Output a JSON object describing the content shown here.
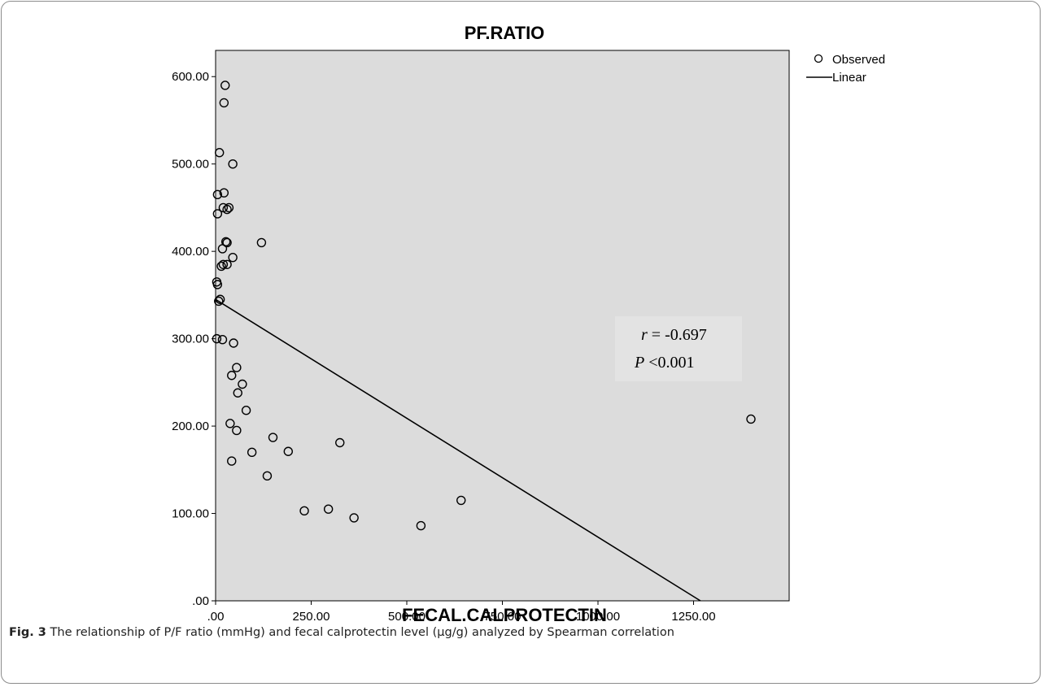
{
  "chart_data": {
    "type": "scatter",
    "title": "PF.RATIO",
    "xlabel": "FECAL.CALPROTECTIN",
    "ylabel": "",
    "xlim": [
      0,
      1500
    ],
    "ylim": [
      0,
      630
    ],
    "x_ticks": [
      ".00",
      "250.00",
      "500.00",
      "750.00",
      "1000.00",
      "1250.00"
    ],
    "y_ticks": [
      ".00",
      "100.00",
      "200.00",
      "300.00",
      "400.00",
      "500.00",
      "600.00"
    ],
    "grid": false,
    "legend": {
      "position": "top-right outside plot",
      "entries": [
        {
          "label": "Observed",
          "marker": "open-circle"
        },
        {
          "label": "Linear",
          "marker": "line"
        }
      ]
    },
    "series": [
      {
        "name": "Observed",
        "points": [
          [
            25,
            590
          ],
          [
            22,
            570
          ],
          [
            10,
            513
          ],
          [
            45,
            500
          ],
          [
            5,
            465
          ],
          [
            22,
            467
          ],
          [
            20,
            450
          ],
          [
            30,
            448
          ],
          [
            35,
            450
          ],
          [
            5,
            443
          ],
          [
            27,
            411
          ],
          [
            30,
            410
          ],
          [
            120,
            410
          ],
          [
            18,
            403
          ],
          [
            45,
            393
          ],
          [
            20,
            385
          ],
          [
            30,
            385
          ],
          [
            15,
            383
          ],
          [
            3,
            365
          ],
          [
            5,
            362
          ],
          [
            12,
            345
          ],
          [
            8,
            343
          ],
          [
            3,
            300
          ],
          [
            18,
            299
          ],
          [
            47,
            295
          ],
          [
            55,
            267
          ],
          [
            42,
            258
          ],
          [
            70,
            248
          ],
          [
            58,
            238
          ],
          [
            80,
            218
          ],
          [
            38,
            203
          ],
          [
            55,
            195
          ],
          [
            95,
            170
          ],
          [
            150,
            187
          ],
          [
            190,
            171
          ],
          [
            325,
            181
          ],
          [
            42,
            160
          ],
          [
            135,
            143
          ],
          [
            232,
            103
          ],
          [
            295,
            105
          ],
          [
            362,
            95
          ],
          [
            537,
            86
          ],
          [
            642,
            115
          ],
          [
            1400,
            208
          ]
        ]
      },
      {
        "name": "Linear",
        "line": {
          "x_start": 0,
          "y_start": 345,
          "x_end": 1268,
          "y_end": 0
        }
      }
    ],
    "annotations": [
      {
        "r_symbol": "r",
        "r_text": " = -0.697"
      },
      {
        "p_symbol": "P",
        "p_text": " <0.001"
      }
    ],
    "colors": {
      "plot_background": "#dcdcdc",
      "marker": "#000000",
      "line": "#000000"
    }
  },
  "caption": {
    "label": "Fig. 3",
    "text": "The relationship of P/F ratio (mmHg) and fecal calprotectin level (µg/g) analyzed by Spearman correlation"
  }
}
